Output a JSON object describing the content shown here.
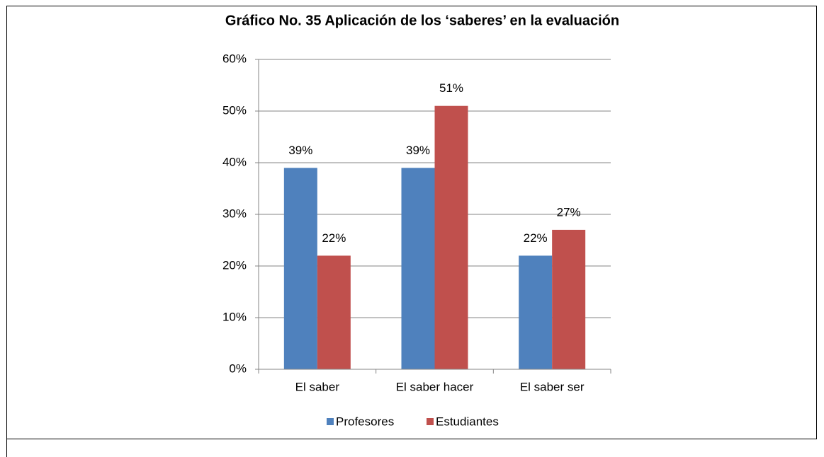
{
  "chart_data": {
    "type": "bar",
    "title": "Gráfico No. 35 Aplicación de los ‘saberes’ en la evaluación",
    "categories": [
      "El saber",
      "El saber hacer",
      "El saber ser"
    ],
    "series": [
      {
        "name": "Profesores",
        "color": "#4f81bd",
        "values": [
          39,
          39,
          22
        ],
        "value_labels": [
          "39%",
          "39%",
          "22%"
        ]
      },
      {
        "name": "Estudiantes",
        "color": "#c0504d",
        "values": [
          22,
          51,
          27
        ],
        "value_labels": [
          "22%",
          "51%",
          "27%"
        ]
      }
    ],
    "ylim": [
      0,
      60
    ],
    "yticks": [
      {
        "value": 0,
        "label": "0%"
      },
      {
        "value": 10,
        "label": "10%"
      },
      {
        "value": 20,
        "label": "20%"
      },
      {
        "value": 30,
        "label": "30%"
      },
      {
        "value": 40,
        "label": "40%"
      },
      {
        "value": 50,
        "label": "50%"
      },
      {
        "value": 60,
        "label": "60%"
      }
    ],
    "grid": true,
    "legend": "bottom"
  }
}
